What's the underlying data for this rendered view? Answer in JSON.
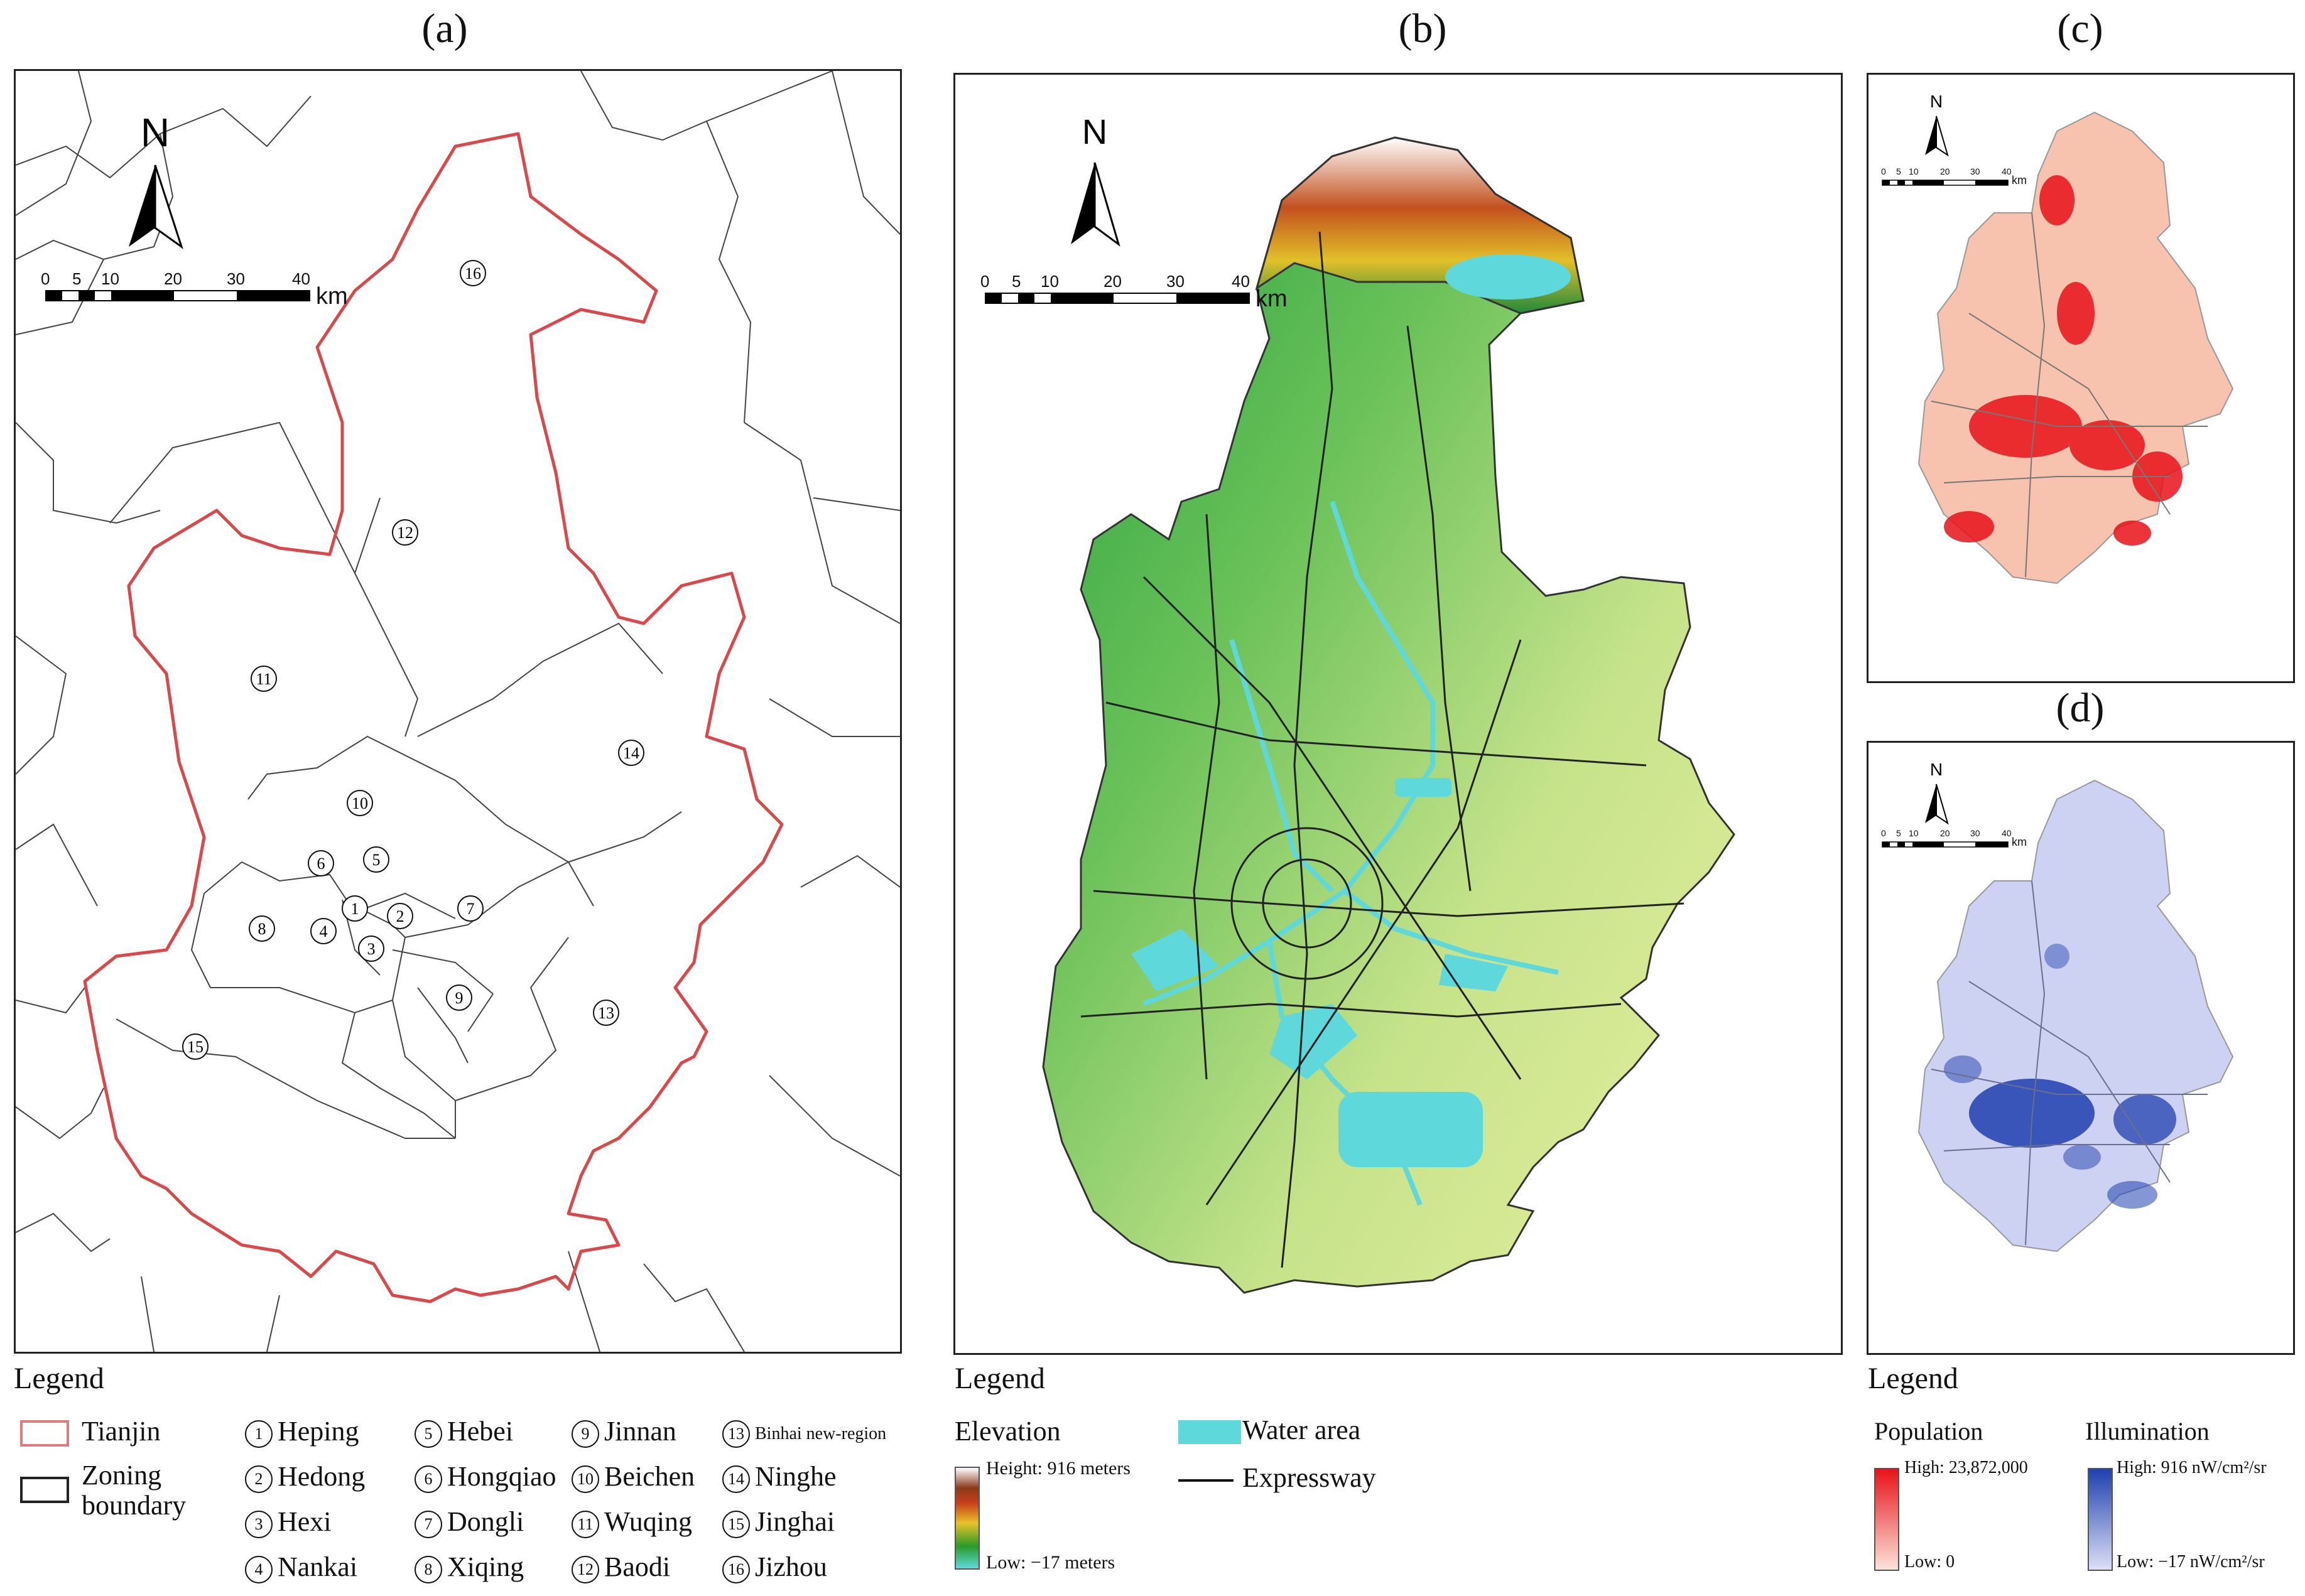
{
  "panels": {
    "a": "(a)",
    "b": "(b)",
    "c": "(c)",
    "d": "(d)"
  },
  "north_label": "N",
  "scale": {
    "ticks": [
      "0",
      "5",
      "10",
      "20",
      "30",
      "40"
    ],
    "unit": "km"
  },
  "legend_a": {
    "title": "Legend",
    "tianjin": "Tianjin",
    "zoning_1": "Zoning",
    "zoning_2": "boundary",
    "districts": [
      {
        "num": "1",
        "name": "Heping"
      },
      {
        "num": "2",
        "name": "Hedong"
      },
      {
        "num": "3",
        "name": "Hexi"
      },
      {
        "num": "4",
        "name": "Nankai"
      },
      {
        "num": "5",
        "name": "Hebei"
      },
      {
        "num": "6",
        "name": "Hongqiao"
      },
      {
        "num": "7",
        "name": "Dongli"
      },
      {
        "num": "8",
        "name": "Xiqing"
      },
      {
        "num": "9",
        "name": "Jinnan"
      },
      {
        "num": "10",
        "name": "Beichen"
      },
      {
        "num": "11",
        "name": "Wuqing"
      },
      {
        "num": "12",
        "name": "Baodi"
      },
      {
        "num": "13",
        "name": "Binhai new-region"
      },
      {
        "num": "14",
        "name": "Ninghe"
      },
      {
        "num": "15",
        "name": "Jinghai"
      },
      {
        "num": "16",
        "name": "Jizhou"
      }
    ]
  },
  "legend_b": {
    "title": "Legend",
    "elevation": "Elevation",
    "high": "Height: 916 meters",
    "low": "Low: −17 meters",
    "water": "Water area",
    "expressway": "Expressway"
  },
  "legend_cd": {
    "title": "Legend",
    "population": "Population",
    "pop_high": "High: 23,872,000",
    "pop_low": "Low: 0",
    "illumination": "Illumination",
    "ill_high": "High: 916 nW/cm²/sr",
    "ill_low": "Low: −17 nW/cm²/sr"
  },
  "colors": {
    "tianjin_boundary": "#d9484b",
    "zoning_boundary": "#222222",
    "water": "#5fd8dc",
    "population_high": "#e8121a",
    "illumination_high": "#1f3fae"
  }
}
